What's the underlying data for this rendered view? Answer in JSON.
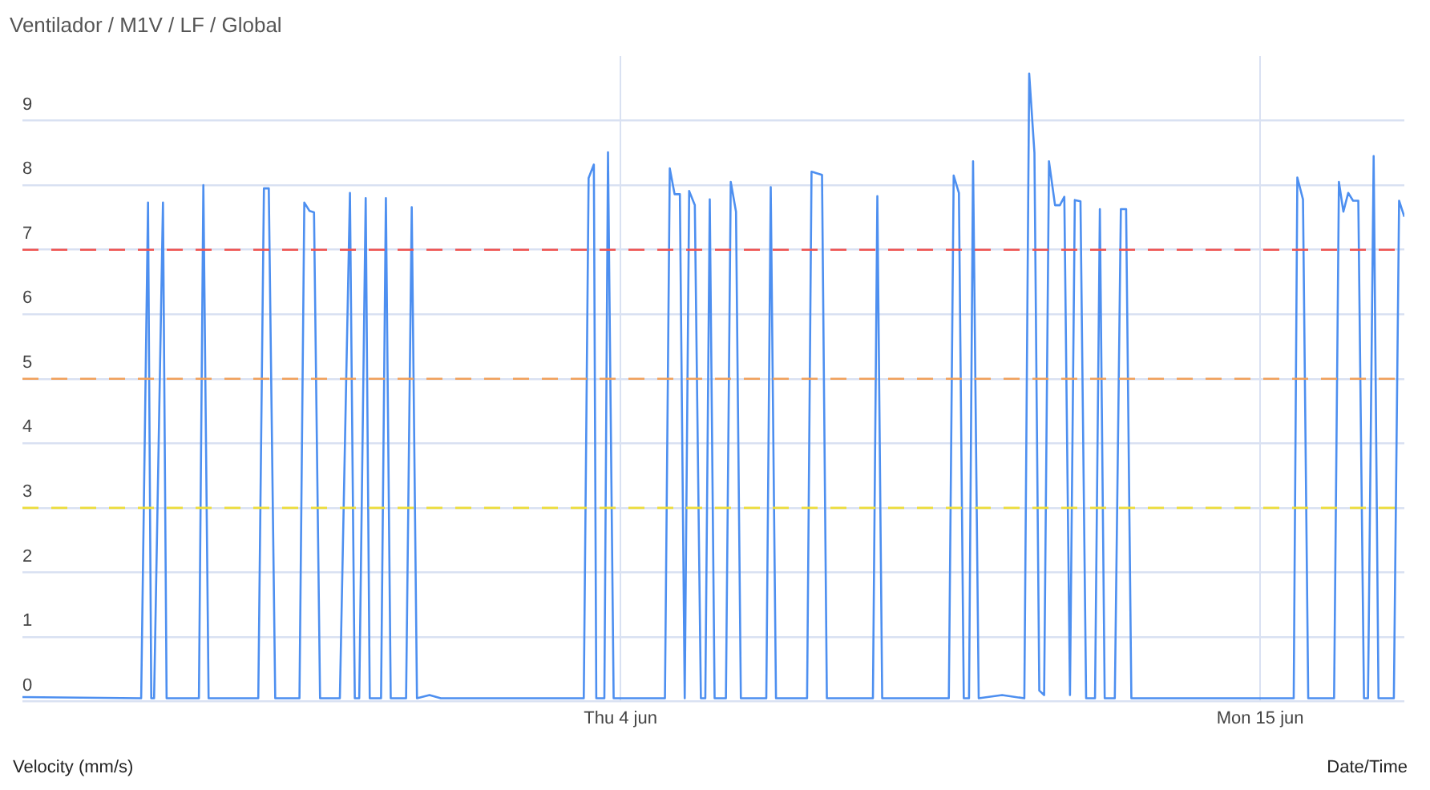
{
  "chart_data": {
    "type": "line",
    "title": "Ventilador / M1V / LF / Global",
    "xlabel": "Date/Time",
    "annotations": [
      "Velocity (mm/s)"
    ],
    "x": [
      "--05-24T17:10",
      "--05-26T18:10",
      "--05-26T21:00",
      "--05-26T22:20",
      "--05-26T23:30",
      "--05-27T03:10",
      "--05-27T04:40",
      "--05-27T18:00",
      "--05-27T19:50",
      "--05-27T22:00",
      "--05-28T18:30",
      "--05-28T20:50",
      "--05-28T22:50",
      "--05-29T01:30",
      "--05-29T11:30",
      "--05-29T13:30",
      "--05-29T15:40",
      "--05-29T17:30",
      "--05-29T20:00",
      "--05-30T04:10",
      "--05-30T08:20",
      "--05-30T10:20",
      "--05-30T12:10",
      "--05-30T14:50",
      "--05-30T16:30",
      "--05-30T21:10",
      "--05-30T23:10",
      "--05-31T01:10",
      "--05-31T07:30",
      "--05-31T09:50",
      "--05-31T12:00",
      "--05-31T17:10",
      "--05-31T21:50",
      "--06-03T08:50",
      "--06-03T10:50",
      "--06-03T13:00",
      "--06-03T14:00",
      "--06-03T15:10",
      "--06-03T17:20",
      "--06-03T18:50",
      "--06-03T21:10",
      "--06-04T18:20",
      "--06-04T20:20",
      "--06-04T22:20",
      "--06-05T00:30",
      "--06-05T02:30",
      "--06-05T04:20",
      "--06-05T06:40",
      "--06-05T09:10",
      "--06-05T11:00",
      "--06-05T12:50",
      "--06-05T14:50",
      "--06-05T19:30",
      "--06-05T21:30",
      "--06-05T23:40",
      "--06-06T01:40",
      "--06-06T12:10",
      "--06-06T14:00",
      "--06-06T16:10",
      "--06-07T05:00",
      "--06-07T06:50",
      "--06-07T11:10",
      "--06-07T13:10",
      "--06-08T08:10",
      "--06-08T10:00",
      "--06-08T12:00",
      "--06-09T15:30",
      "--06-09T17:30",
      "--06-09T19:40",
      "--06-09T21:40",
      "--06-09T23:50",
      "--06-10T01:30",
      "--06-10T03:50",
      "--06-10T13:30",
      "--06-10T22:40",
      "--06-11T00:40",
      "--06-11T02:50",
      "--06-11T04:50",
      "--06-11T06:50",
      "--06-11T08:50",
      "--06-11T11:20",
      "--06-11T13:20",
      "--06-11T15:10",
      "--06-11T17:30",
      "--06-11T19:30",
      "--06-11T21:50",
      "--06-12T00:10",
      "--06-12T03:50",
      "--06-12T05:50",
      "--06-12T07:50",
      "--06-12T12:00",
      "--06-12T14:30",
      "--06-12T16:40",
      "--06-12T18:50",
      "--06-15T13:50",
      "--06-15T15:20",
      "--06-15T17:40",
      "--06-15T19:50",
      "--06-16T06:30",
      "--06-16T08:30",
      "--06-16T10:20",
      "--06-16T12:20",
      "--06-16T14:20",
      "--06-16T16:30",
      "--06-16T18:50",
      "--06-16T20:30",
      "--06-16T22:50",
      "--06-17T00:50",
      "--06-17T07:10",
      "--06-17T09:20",
      "--06-17T11:30"
    ],
    "series": [
      {
        "color": "#4d8ff0",
        "values": [
          0.07,
          0.05,
          7.73,
          0.05,
          0.05,
          7.73,
          0.05,
          0.05,
          8.0,
          0.05,
          0.05,
          7.95,
          7.95,
          0.05,
          0.05,
          7.73,
          7.6,
          7.58,
          0.05,
          0.05,
          7.88,
          0.05,
          0.05,
          7.8,
          0.05,
          0.05,
          7.8,
          0.05,
          0.05,
          7.66,
          0.05,
          0.1,
          0.05,
          0.05,
          8.11,
          8.32,
          0.05,
          0.05,
          0.05,
          8.51,
          0.05,
          0.05,
          8.26,
          7.86,
          7.86,
          0.05,
          7.91,
          7.69,
          0.05,
          0.05,
          7.78,
          0.05,
          0.05,
          8.05,
          7.59,
          0.05,
          0.05,
          7.97,
          0.05,
          0.05,
          8.21,
          8.16,
          0.05,
          0.05,
          7.83,
          0.05,
          0.05,
          8.15,
          7.88,
          0.05,
          0.05,
          8.37,
          0.05,
          0.1,
          0.05,
          9.73,
          8.5,
          0.17,
          0.1,
          8.37,
          7.69,
          7.69,
          7.82,
          0.1,
          7.77,
          7.75,
          0.05,
          0.05,
          7.63,
          0.05,
          0.05,
          7.63,
          7.63,
          0.05,
          0.05,
          8.12,
          7.78,
          0.05,
          0.05,
          8.05,
          7.59,
          7.88,
          7.76,
          7.76,
          0.05,
          0.05,
          8.45,
          0.05,
          0.05,
          7.76,
          7.51
        ]
      }
    ],
    "xlim": [
      "--05-24T17:10",
      "--06-17T11:30"
    ],
    "xticks": [
      {
        "value": "--06-04",
        "label": "Thu 4 jun"
      },
      {
        "value": "--06-15",
        "label": "Mon 15 jun"
      }
    ],
    "ylim": [
      0,
      10
    ],
    "yticks": [
      0,
      1,
      2,
      3,
      4,
      5,
      6,
      7,
      8,
      9
    ],
    "grid": true,
    "marker": "none",
    "line_style": "solid",
    "ref_lines": [
      {
        "axis": "y",
        "value": 7,
        "color": "#ef5350",
        "line_style": "dashed"
      },
      {
        "axis": "y",
        "value": 5,
        "color": "#f0a05a",
        "line_style": "dashed"
      },
      {
        "axis": "y",
        "value": 3,
        "color": "#ecdc3a",
        "line_style": "dashed"
      }
    ]
  }
}
